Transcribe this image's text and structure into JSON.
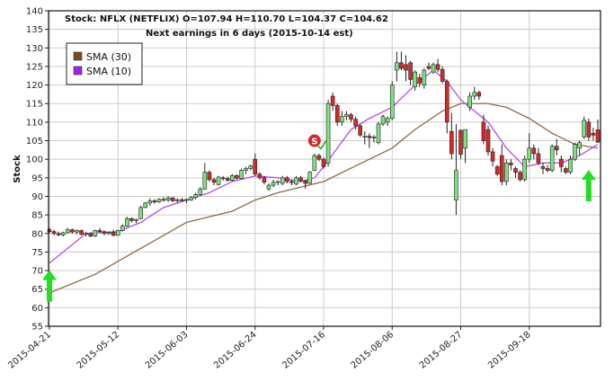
{
  "chart_data": {
    "type": "candlestick",
    "title": "Stock: NFLX (NETFLIX) O=107.94  H=110.70  L=104.37  C=104.62",
    "subtitle": "Next earnings in 6 days  (2015-10-14 est)",
    "ylabel": "Stock",
    "xlabel": "",
    "ylim": [
      55,
      140
    ],
    "yticks": [
      55,
      60,
      65,
      70,
      75,
      80,
      85,
      90,
      95,
      100,
      105,
      110,
      115,
      120,
      125,
      130,
      135,
      140
    ],
    "xtick_labels": [
      {
        "index": 0,
        "label": "2015-04-21"
      },
      {
        "index": 15,
        "label": "2015-05-12"
      },
      {
        "index": 30,
        "label": "2015-06-03"
      },
      {
        "index": 45,
        "label": "2015-06-24"
      },
      {
        "index": 60,
        "label": "2015-07-16"
      },
      {
        "index": 75,
        "label": "2015-08-06"
      },
      {
        "index": 90,
        "label": "2015-08-27"
      },
      {
        "index": 105,
        "label": "2015-09-18"
      }
    ],
    "grid": true,
    "legend_position": "top-left",
    "legend": [
      {
        "label": "SMA  (30)",
        "color": "#7a4a1e"
      },
      {
        "label": "SMA  (10)",
        "color": "#a020f0"
      }
    ],
    "colors": {
      "up": "#7de27d",
      "down": "#d42a2a",
      "sma30": "#8b6a4a",
      "sma10": "#b050e0",
      "arrow": "#22dd22",
      "signal": "#d42a2a"
    },
    "candles": [
      [
        81,
        81.5,
        80,
        80.5
      ],
      [
        80.5,
        81,
        79.5,
        80
      ],
      [
        80,
        80.5,
        79.3,
        79.6
      ],
      [
        79.6,
        80.5,
        79.2,
        80.2
      ],
      [
        80.2,
        81.5,
        80,
        81
      ],
      [
        81,
        81.3,
        80,
        80.4
      ],
      [
        80.4,
        81,
        79.8,
        80.8
      ],
      [
        80.8,
        81,
        79.5,
        79.8
      ],
      [
        79.8,
        80.5,
        79.2,
        80
      ],
      [
        80,
        80.3,
        79,
        79.3
      ],
      [
        79.3,
        81,
        79,
        80.8
      ],
      [
        80.8,
        81.5,
        80.2,
        80.5
      ],
      [
        80.5,
        80.8,
        79.5,
        80
      ],
      [
        80,
        80.6,
        79.6,
        80.3
      ],
      [
        80.3,
        81,
        79.2,
        79.5
      ],
      [
        79.5,
        81,
        79.5,
        80.8
      ],
      [
        80.8,
        82.5,
        80.5,
        82
      ],
      [
        82,
        84.5,
        81.8,
        84
      ],
      [
        84,
        84.3,
        83,
        83.5
      ],
      [
        83.5,
        84,
        82.8,
        83.8
      ],
      [
        84,
        87.5,
        83.8,
        87
      ],
      [
        87,
        88.5,
        86.8,
        88.2
      ],
      [
        88.2,
        89.5,
        87.5,
        88.8
      ],
      [
        88.8,
        89.3,
        88,
        88.5
      ],
      [
        88.5,
        89.5,
        88.2,
        89.2
      ],
      [
        89.2,
        89.8,
        88.6,
        89
      ],
      [
        89,
        90,
        88.5,
        89.6
      ],
      [
        89.6,
        89.8,
        88.5,
        88.8
      ],
      [
        88.8,
        89.5,
        88.3,
        89.1
      ],
      [
        89.1,
        89.6,
        88.6,
        88.9
      ],
      [
        88.9,
        89.4,
        88.2,
        89.2
      ],
      [
        89,
        90,
        88.8,
        89.7
      ],
      [
        89.7,
        91,
        89.2,
        90.5
      ],
      [
        90.5,
        92.5,
        90.2,
        92
      ],
      [
        92,
        99,
        91.8,
        96.5
      ],
      [
        96.5,
        97,
        94,
        94.5
      ],
      [
        94.5,
        95,
        93,
        93.8
      ],
      [
        93.2,
        95.5,
        93,
        95.2
      ],
      [
        95,
        95.5,
        94.2,
        94.8
      ],
      [
        94.8,
        95.3,
        94,
        94.3
      ],
      [
        94.3,
        96,
        94,
        95.6
      ],
      [
        95.6,
        96,
        94.5,
        94.9
      ],
      [
        94.8,
        97.5,
        94.5,
        97
      ],
      [
        97,
        98,
        96,
        97.5
      ],
      [
        97.5,
        98.5,
        97,
        98.2
      ],
      [
        100,
        101.5,
        95.5,
        96
      ],
      [
        96,
        96.5,
        94.5,
        95
      ],
      [
        95,
        95.5,
        93.2,
        93.8
      ],
      [
        92,
        93.5,
        91.5,
        93
      ],
      [
        93,
        94.5,
        92.5,
        93.8
      ],
      [
        93.8,
        94.3,
        93,
        94
      ],
      [
        93.5,
        95.5,
        93,
        95
      ],
      [
        95,
        95.5,
        93.5,
        94
      ],
      [
        94,
        94.5,
        93,
        93.7
      ],
      [
        93.3,
        95.5,
        93,
        95
      ],
      [
        95,
        95.5,
        93.8,
        94.2
      ],
      [
        94.2,
        94.5,
        92,
        93.5
      ],
      [
        93.5,
        96.8,
        93.3,
        96.5
      ],
      [
        97,
        101.5,
        96.8,
        101
      ],
      [
        101,
        101.5,
        99.5,
        100
      ],
      [
        100,
        100.5,
        97.5,
        98
      ],
      [
        99,
        116,
        98,
        115
      ],
      [
        117,
        118,
        113,
        114.5
      ],
      [
        114.5,
        115,
        109,
        110
      ],
      [
        110,
        113,
        109,
        111.5
      ],
      [
        111.5,
        113,
        110.5,
        112
      ],
      [
        112,
        112.5,
        110,
        110.8
      ],
      [
        110.8,
        111.5,
        108,
        109
      ],
      [
        109,
        109.5,
        106,
        106.5
      ],
      [
        106,
        107.5,
        104,
        106.2
      ],
      [
        106.2,
        107,
        103,
        105.8
      ],
      [
        105.8,
        106.5,
        104.5,
        106
      ],
      [
        104.5,
        110,
        104,
        109.5
      ],
      [
        109.5,
        112,
        109,
        111.5
      ],
      [
        110,
        111.5,
        109,
        111
      ],
      [
        111,
        121,
        110.5,
        120
      ],
      [
        124,
        129,
        121,
        126
      ],
      [
        126,
        129,
        124,
        124.5
      ],
      [
        125.5,
        128,
        121,
        124
      ],
      [
        126,
        126.5,
        120,
        121.5
      ],
      [
        119.5,
        124,
        118.5,
        123.5
      ],
      [
        122,
        123,
        119.5,
        120.5
      ],
      [
        120,
        124.5,
        119,
        124
      ],
      [
        125,
        126,
        124,
        124.5
      ],
      [
        123.5,
        126,
        123,
        125.5
      ],
      [
        125.5,
        127,
        123.5,
        124.2
      ],
      [
        124.2,
        125,
        120.5,
        121
      ],
      [
        121,
        121.5,
        107,
        110
      ],
      [
        107.5,
        112.5,
        100,
        101.5
      ],
      [
        89,
        109.5,
        85,
        97
      ],
      [
        107.8,
        108,
        100,
        101.3
      ],
      [
        103,
        108,
        99,
        108
      ],
      [
        114,
        118,
        113,
        117
      ],
      [
        117,
        119.5,
        116,
        118
      ],
      [
        118,
        118.5,
        116,
        117
      ],
      [
        110,
        112,
        104,
        105
      ],
      [
        108,
        109,
        101,
        102
      ],
      [
        102,
        103,
        98,
        99.5
      ],
      [
        98,
        98.5,
        95.5,
        96
      ],
      [
        101,
        104,
        93,
        94
      ],
      [
        94,
        100,
        93,
        99
      ],
      [
        99,
        100,
        97,
        98.5
      ],
      [
        97.5,
        98,
        95,
        96.5
      ],
      [
        96.5,
        97,
        94,
        94.5
      ],
      [
        94.5,
        101,
        94,
        100
      ],
      [
        100,
        107,
        99,
        103
      ],
      [
        103,
        104,
        100,
        101.5
      ],
      [
        101.5,
        103,
        98.5,
        99
      ],
      [
        98,
        99,
        96,
        97.5
      ],
      [
        97.5,
        98.5,
        96.5,
        97
      ],
      [
        97,
        104,
        96.5,
        103.5
      ],
      [
        103.5,
        105.5,
        101,
        102.5
      ],
      [
        100,
        101,
        96.5,
        98
      ],
      [
        97.5,
        98,
        96,
        96.5
      ],
      [
        96.5,
        101,
        96,
        100
      ],
      [
        100,
        104.5,
        99.5,
        104
      ],
      [
        103,
        105,
        101,
        104.5
      ],
      [
        106,
        111.5,
        105.5,
        110.5
      ],
      [
        110,
        111,
        105,
        106
      ],
      [
        107,
        108.5,
        105,
        106.5
      ],
      [
        107.94,
        110.7,
        104.37,
        104.62
      ]
    ],
    "sma30": [
      [
        0,
        64
      ],
      [
        10,
        69
      ],
      [
        20,
        76
      ],
      [
        30,
        83
      ],
      [
        40,
        86
      ],
      [
        45,
        89
      ],
      [
        50,
        91
      ],
      [
        60,
        94
      ],
      [
        65,
        97
      ],
      [
        70,
        100
      ],
      [
        75,
        103
      ],
      [
        80,
        108
      ],
      [
        86,
        113
      ],
      [
        90,
        115
      ],
      [
        96,
        115
      ],
      [
        100,
        114
      ],
      [
        105,
        111
      ],
      [
        110,
        107
      ],
      [
        115,
        104
      ],
      [
        120,
        103
      ]
    ],
    "sma10": [
      [
        0,
        72
      ],
      [
        5,
        77
      ],
      [
        8,
        80
      ],
      [
        15,
        80.5
      ],
      [
        20,
        83
      ],
      [
        25,
        87
      ],
      [
        30,
        89
      ],
      [
        35,
        91
      ],
      [
        40,
        94
      ],
      [
        45,
        95.5
      ],
      [
        50,
        95
      ],
      [
        55,
        94
      ],
      [
        58,
        95
      ],
      [
        60,
        98
      ],
      [
        63,
        103
      ],
      [
        66,
        108
      ],
      [
        70,
        111
      ],
      [
        75,
        114
      ],
      [
        80,
        120
      ],
      [
        84,
        124
      ],
      [
        87,
        121
      ],
      [
        90,
        116
      ],
      [
        93,
        113
      ],
      [
        96,
        110
      ],
      [
        100,
        103
      ],
      [
        104,
        98
      ],
      [
        108,
        99
      ],
      [
        112,
        99
      ],
      [
        116,
        101
      ],
      [
        120,
        104
      ]
    ],
    "annotations": [
      {
        "type": "sell-signal",
        "label": "S",
        "index": 58,
        "price": 105
      },
      {
        "type": "buy-arrow",
        "index": 0,
        "price": 67
      },
      {
        "type": "buy-arrow",
        "index": 118,
        "price": 94
      }
    ]
  }
}
